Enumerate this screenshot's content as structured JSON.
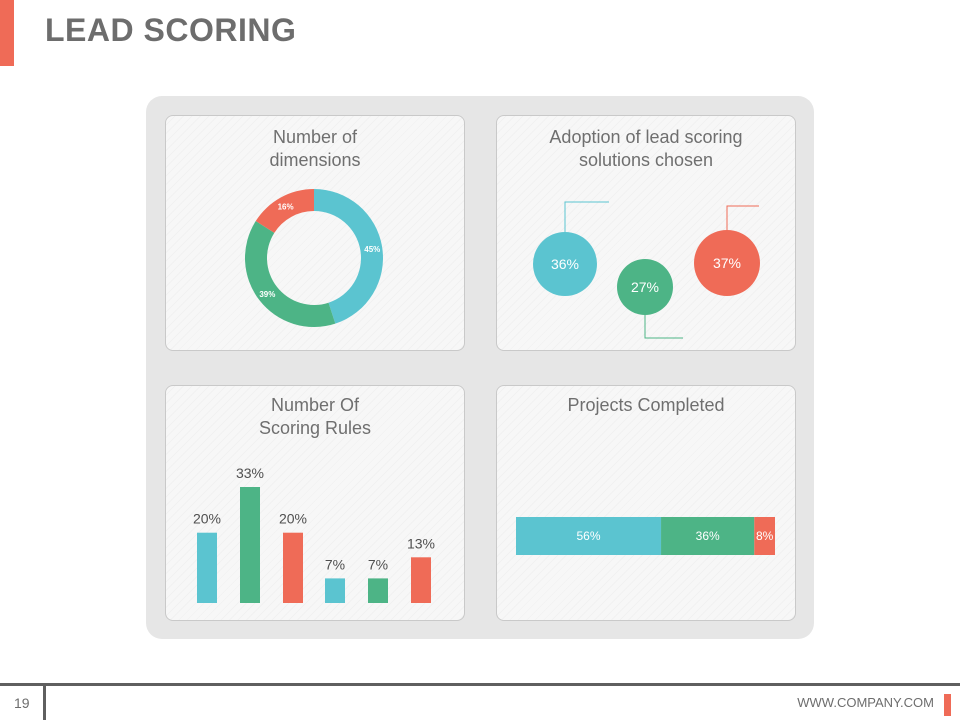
{
  "page": {
    "title": "LEAD SCORING",
    "page_number": "19",
    "company": "WWW.COMPANY.COM"
  },
  "colors": {
    "teal": "#5bc4d0",
    "green": "#4db486",
    "coral": "#ef6b57",
    "text": "#6d6d6d"
  },
  "cards": {
    "dimensions": {
      "title_line1": "Number of",
      "title_line2": "dimensions"
    },
    "adoption": {
      "title_line1": "Adoption of lead scoring",
      "title_line2": "solutions chosen"
    },
    "rules": {
      "title_line1": "Number Of",
      "title_line2": "Scoring Rules"
    },
    "projects": {
      "title_line1": "Projects Completed"
    }
  },
  "chart_data": [
    {
      "type": "pie",
      "title": "Number of dimensions",
      "donut": true,
      "slices": [
        {
          "label": "45%",
          "value": 45,
          "color": "#5bc4d0"
        },
        {
          "label": "39%",
          "value": 39,
          "color": "#4db486"
        },
        {
          "label": "16%",
          "value": 16,
          "color": "#ef6b57"
        }
      ]
    },
    {
      "type": "scatter",
      "title": "Adoption of lead scoring solutions chosen",
      "points": [
        {
          "label": "36%",
          "value": 36,
          "color": "#5bc4d0"
        },
        {
          "label": "27%",
          "value": 27,
          "color": "#4db486"
        },
        {
          "label": "37%",
          "value": 37,
          "color": "#ef6b57"
        }
      ]
    },
    {
      "type": "bar",
      "title": "Number Of Scoring Rules",
      "categories": [
        "",
        "",
        "",
        "",
        "",
        ""
      ],
      "values": [
        20,
        33,
        20,
        7,
        7,
        13
      ],
      "labels": [
        "20%",
        "33%",
        "20%",
        "7%",
        "7%",
        "13%"
      ],
      "colors": [
        "#5bc4d0",
        "#4db486",
        "#ef6b57",
        "#5bc4d0",
        "#4db486",
        "#ef6b57"
      ]
    },
    {
      "type": "bar",
      "stacked": true,
      "orientation": "horizontal",
      "title": "Projects Completed",
      "segments": [
        {
          "label": "56%",
          "value": 56,
          "color": "#5bc4d0"
        },
        {
          "label": "36%",
          "value": 36,
          "color": "#4db486"
        },
        {
          "label": "8%",
          "value": 8,
          "color": "#ef6b57"
        }
      ]
    }
  ]
}
